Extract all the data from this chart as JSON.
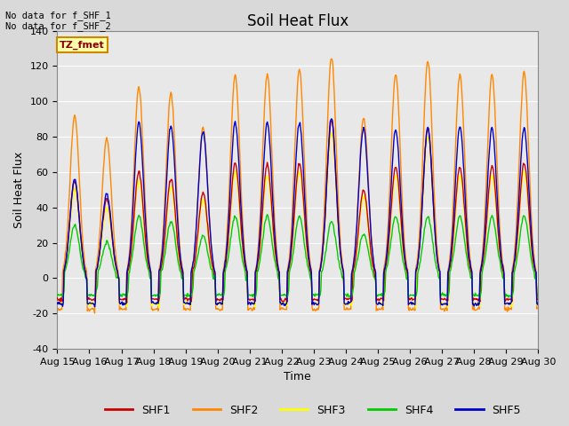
{
  "title": "Soil Heat Flux",
  "ylabel": "Soil Heat Flux",
  "xlabel": "Time",
  "ylim": [
    -40,
    140
  ],
  "yticks": [
    -40,
    -20,
    0,
    20,
    40,
    60,
    80,
    100,
    120,
    140
  ],
  "xtick_labels": [
    "Aug 15",
    "Aug 16",
    "Aug 17",
    "Aug 18",
    "Aug 19",
    "Aug 20",
    "Aug 21",
    "Aug 22",
    "Aug 23",
    "Aug 24",
    "Aug 25",
    "Aug 26",
    "Aug 27",
    "Aug 28",
    "Aug 29",
    "Aug 30"
  ],
  "colors": {
    "SHF1": "#cc0000",
    "SHF2": "#ff8800",
    "SHF3": "#ffff00",
    "SHF4": "#00cc00",
    "SHF5": "#0000cc"
  },
  "annotation_text": "No data for f_SHF_1\nNo data for f_SHF_2",
  "tz_label": "TZ_fmet",
  "background_color": "#d9d9d9",
  "plot_bg_color": "#e8e8e8",
  "grid_color": "#ffffff",
  "title_fontsize": 12,
  "axis_fontsize": 9,
  "tick_fontsize": 8
}
